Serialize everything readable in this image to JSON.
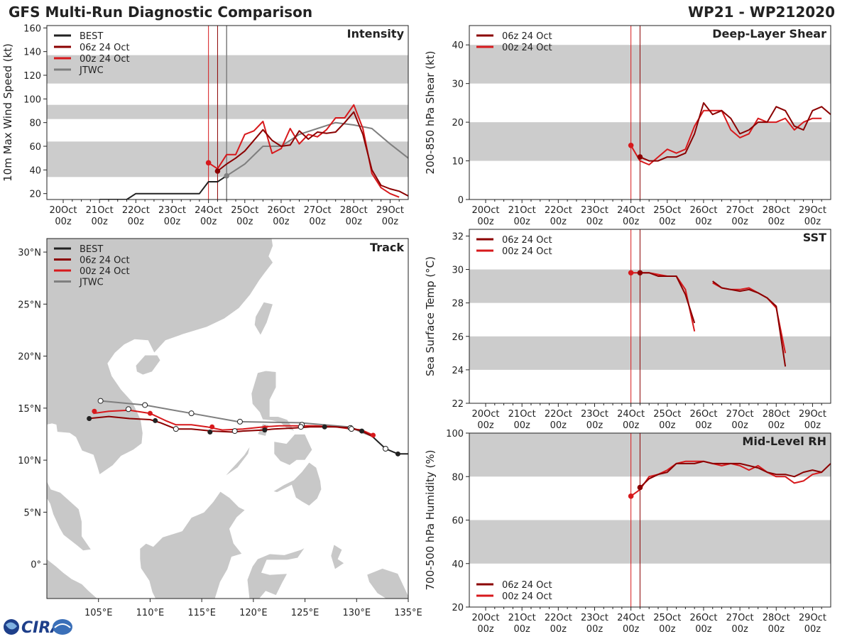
{
  "header": {
    "title": "GFS Multi-Run Diagnostic Comparison",
    "storm": "WP21 - WP212020"
  },
  "colors": {
    "best": "#222222",
    "run06": "#8b0000",
    "run00": "#d7191c",
    "jtwc": "#7f7f7f",
    "band": "#cccccc",
    "land": "#c8c8c8"
  },
  "legend": {
    "best": "BEST",
    "run06": "06z 24 Oct",
    "run00": "00z 24 Oct",
    "jtwc": "JTWC"
  },
  "time_axis": {
    "days": [
      "20Oct",
      "21Oct",
      "22Oct",
      "23Oct",
      "24Oct",
      "25Oct",
      "26Oct",
      "27Oct",
      "28Oct",
      "29Oct"
    ],
    "hour_label": "00z",
    "day_range": [
      19.55,
      29.5
    ]
  },
  "chart_data": [
    {
      "id": "intensity",
      "type": "line",
      "title": "Intensity",
      "ylabel": "10m Max Wind Speed (kt)",
      "ylim": [
        15,
        162
      ],
      "yticks": [
        20,
        40,
        60,
        80,
        100,
        120,
        140,
        160
      ],
      "bands": [
        [
          34,
          64
        ],
        [
          83,
          95
        ],
        [
          113,
          137
        ]
      ],
      "init_lines": [
        24.0,
        24.25
      ],
      "jtwc_line": 24.5,
      "series": [
        {
          "key": "best",
          "name": "BEST",
          "marker_at_start": false,
          "x": [
            21.0,
            21.25,
            21.5,
            21.75,
            22.0,
            22.25,
            22.5,
            22.75,
            23.0,
            23.25,
            23.5,
            23.75,
            24.0,
            24.25,
            24.5
          ],
          "y": [
            15,
            15,
            15,
            15,
            20,
            20,
            20,
            20,
            20,
            20,
            20,
            20,
            30,
            30,
            35
          ]
        },
        {
          "key": "run06",
          "name": "06z 24 Oct",
          "marker_at_start": true,
          "x": [
            24.25,
            24.5,
            24.75,
            25.0,
            25.25,
            25.5,
            25.75,
            26.0,
            26.25,
            26.5,
            26.75,
            27.0,
            27.25,
            27.5,
            27.75,
            28.0,
            28.25,
            28.5,
            28.75,
            29.0,
            29.25,
            29.5
          ],
          "y": [
            39,
            45,
            50,
            56,
            65,
            74,
            65,
            60,
            61,
            73,
            66,
            72,
            71,
            72,
            80,
            89,
            70,
            40,
            27,
            24,
            22,
            18
          ]
        },
        {
          "key": "run00",
          "name": "00z 24 Oct",
          "marker_at_start": true,
          "x": [
            24.0,
            24.25,
            24.5,
            24.75,
            25.0,
            25.25,
            25.5,
            25.75,
            26.0,
            26.25,
            26.5,
            26.75,
            27.0,
            27.25,
            27.5,
            27.75,
            28.0,
            28.25,
            28.5,
            28.75,
            29.0,
            29.25
          ],
          "y": [
            46,
            41,
            53,
            53,
            70,
            73,
            81,
            54,
            58,
            75,
            62,
            70,
            68,
            74,
            84,
            84,
            95,
            75,
            37,
            25,
            20,
            17
          ]
        },
        {
          "key": "jtwc",
          "name": "JTWC",
          "marker_at_start": true,
          "x": [
            24.5,
            25.0,
            25.5,
            26.0,
            26.5,
            27.0,
            27.5,
            28.0,
            28.5,
            29.0,
            29.5
          ],
          "y": [
            35,
            45,
            60,
            60,
            70,
            75,
            80,
            78,
            75,
            62,
            50
          ]
        }
      ]
    },
    {
      "id": "shear",
      "type": "line",
      "title": "Deep-Layer Shear",
      "ylabel": "200-850 hPa Shear (kt)",
      "ylim": [
        0,
        45
      ],
      "yticks": [
        0,
        10,
        20,
        30,
        40
      ],
      "bands": [
        [
          10,
          20
        ],
        [
          30,
          40
        ]
      ],
      "init_lines": [
        24.0,
        24.25
      ],
      "series": [
        {
          "key": "run06",
          "name": "06z 24 Oct",
          "marker_at_start": true,
          "x": [
            24.25,
            24.5,
            24.75,
            25.0,
            25.25,
            25.5,
            25.75,
            26.0,
            26.25,
            26.5,
            26.75,
            27.0,
            27.25,
            27.5,
            27.75,
            28.0,
            28.25,
            28.5,
            28.75,
            29.0,
            29.25,
            29.5
          ],
          "y": [
            11,
            10,
            10,
            11,
            11,
            12,
            17,
            25,
            22,
            23,
            21,
            17,
            18,
            20,
            20,
            24,
            23,
            19,
            18,
            23,
            24,
            22
          ]
        },
        {
          "key": "run00",
          "name": "00z 24 Oct",
          "marker_at_start": true,
          "x": [
            24.0,
            24.25,
            24.5,
            24.75,
            25.0,
            25.25,
            25.5,
            25.75,
            26.0,
            26.25,
            26.5,
            26.75,
            27.0,
            27.25,
            27.5,
            27.75,
            28.0,
            28.25,
            28.5,
            28.75,
            29.0,
            29.25
          ],
          "y": [
            14,
            10,
            9,
            11,
            13,
            12,
            13,
            19,
            23,
            23,
            23,
            18,
            16,
            17,
            21,
            20,
            20,
            21,
            18,
            20,
            21,
            21
          ]
        }
      ]
    },
    {
      "id": "sst",
      "type": "line",
      "title": "SST",
      "ylabel": "Sea Surface Temp (°C)",
      "ylim": [
        22,
        32.4
      ],
      "yticks": [
        22,
        24,
        26,
        28,
        30,
        32
      ],
      "bands": [
        [
          24,
          26
        ],
        [
          28,
          30
        ]
      ],
      "init_lines": [
        24.0,
        24.25
      ],
      "series": [
        {
          "key": "run06",
          "name": "06z 24 Oct",
          "marker_at_start": true,
          "segments": [
            {
              "x": [
                24.25,
                24.5,
                24.75,
                25.0,
                25.25,
                25.5,
                25.75
              ],
              "y": [
                29.8,
                29.8,
                29.6,
                29.6,
                29.6,
                28.5,
                26.8
              ]
            },
            {
              "x": [
                26.25,
                26.5,
                26.75,
                27.0,
                27.25,
                27.5,
                27.75,
                28.0,
                28.25
              ],
              "y": [
                29.3,
                28.9,
                28.8,
                28.7,
                28.8,
                28.6,
                28.3,
                27.8,
                24.2
              ]
            }
          ]
        },
        {
          "key": "run00",
          "name": "00z 24 Oct",
          "marker_at_start": true,
          "segments": [
            {
              "x": [
                24.0,
                24.25,
                24.5,
                24.75,
                25.0,
                25.25,
                25.5,
                25.75
              ],
              "y": [
                29.8,
                29.8,
                29.8,
                29.7,
                29.6,
                29.6,
                28.8,
                26.3
              ]
            },
            {
              "x": [
                26.25,
                26.5,
                26.75,
                27.0,
                27.25,
                27.5,
                27.75,
                28.0,
                28.25
              ],
              "y": [
                29.2,
                28.9,
                28.8,
                28.8,
                28.9,
                28.6,
                28.3,
                27.7,
                25.0
              ]
            }
          ]
        }
      ]
    },
    {
      "id": "rh",
      "type": "line",
      "title": "Mid-Level RH",
      "ylabel": "700-500 hPa Humidity (%)",
      "ylim": [
        20,
        100
      ],
      "yticks": [
        20,
        40,
        60,
        80,
        100
      ],
      "bands": [
        [
          40,
          60
        ],
        [
          80,
          100
        ]
      ],
      "init_lines": [
        24.0,
        24.25
      ],
      "legend_position": "bottom-left",
      "series": [
        {
          "key": "run06",
          "name": "06z 24 Oct",
          "marker_at_start": true,
          "x": [
            24.25,
            24.5,
            24.75,
            25.0,
            25.25,
            25.5,
            25.75,
            26.0,
            26.25,
            26.5,
            26.75,
            27.0,
            27.25,
            27.5,
            27.75,
            28.0,
            28.25,
            28.5,
            28.75,
            29.0,
            29.25,
            29.5
          ],
          "y": [
            75,
            79,
            81,
            82,
            86,
            86,
            86,
            87,
            86,
            86,
            86,
            86,
            85,
            84,
            82,
            81,
            81,
            80,
            82,
            83,
            82,
            86
          ]
        },
        {
          "key": "run00",
          "name": "00z 24 Oct",
          "marker_at_start": true,
          "x": [
            24.0,
            24.25,
            24.5,
            24.75,
            25.0,
            25.25,
            25.5,
            25.75,
            26.0,
            26.25,
            26.5,
            26.75,
            27.0,
            27.25,
            27.5,
            27.75,
            28.0,
            28.25,
            28.5,
            28.75,
            29.0,
            29.25
          ],
          "y": [
            71,
            74,
            80,
            81,
            83,
            86,
            87,
            87,
            87,
            86,
            85,
            86,
            85,
            83,
            85,
            82,
            80,
            80,
            77,
            78,
            81,
            82
          ]
        }
      ]
    },
    {
      "id": "track",
      "type": "scatter",
      "title": "Track",
      "xlim": [
        100.0,
        135.0
      ],
      "ylim": [
        -3.3,
        31.3
      ],
      "xticks": [
        105,
        110,
        115,
        120,
        125,
        130,
        135
      ],
      "xticklabels": [
        "105°E",
        "110°E",
        "115°E",
        "120°E",
        "125°E",
        "130°E",
        "135°E"
      ],
      "yticks": [
        0,
        5,
        10,
        15,
        20,
        25,
        30
      ],
      "yticklabels": [
        "0°",
        "5°N",
        "10°N",
        "15°N",
        "20°N",
        "25°N",
        "30°N"
      ],
      "series": [
        {
          "key": "best",
          "name": "BEST",
          "lon": [
            135.0,
            134.0,
            132.8,
            131.5
          ],
          "lat": [
            10.6,
            10.6,
            11.1,
            12.3
          ],
          "points": [
            {
              "lon": 134.0,
              "lat": 10.6,
              "filled": true
            },
            {
              "lon": 132.8,
              "lat": 11.1,
              "filled": false
            }
          ]
        },
        {
          "key": "run06",
          "name": "06z 24 Oct",
          "lon": [
            131.5,
            130.5,
            129.5,
            128.0,
            127.0,
            125.5,
            124.0,
            122.0,
            121.0,
            119.0,
            118.0,
            116.0,
            114.0,
            112.5,
            111.0,
            110.0,
            108.0,
            106.0,
            104.0
          ],
          "lat": [
            12.3,
            12.8,
            13.1,
            13.2,
            13.2,
            13.2,
            13.1,
            13.0,
            12.9,
            12.8,
            12.7,
            12.8,
            13.0,
            13.0,
            13.6,
            13.9,
            14.0,
            14.2,
            14.0
          ],
          "points": [
            {
              "lon": 130.5,
              "lat": 12.8
            },
            {
              "lon": 126.9,
              "lat": 13.2
            },
            {
              "lon": 121.1,
              "lat": 12.9
            },
            {
              "lon": 115.8,
              "lat": 12.7
            },
            {
              "lon": 110.5,
              "lat": 13.8
            },
            {
              "lon": 104.1,
              "lat": 14.0
            }
          ]
        },
        {
          "key": "run00",
          "name": "00z 24 Oct",
          "lon": [
            131.6,
            130.5,
            129.5,
            128.0,
            126.0,
            124.5,
            122.5,
            121.0,
            119.0,
            117.0,
            115.5,
            114.0,
            112.5,
            111.5,
            110.0,
            108.0,
            106.0,
            104.5
          ],
          "lat": [
            12.4,
            12.9,
            13.0,
            13.2,
            13.3,
            13.3,
            13.3,
            13.2,
            13.0,
            12.9,
            13.2,
            13.4,
            13.4,
            13.8,
            14.5,
            14.8,
            14.7,
            14.5
          ],
          "points": [
            {
              "lon": 131.6,
              "lat": 12.4
            },
            {
              "lon": 116.0,
              "lat": 13.2
            },
            {
              "lon": 121.1,
              "lat": 13.1
            },
            {
              "lon": 110.0,
              "lat": 14.5
            },
            {
              "lon": 104.6,
              "lat": 14.7
            }
          ]
        },
        {
          "key": "jtwc",
          "name": "JTWC",
          "lon": [
            131.5,
            129.2,
            124.5,
            118.5,
            114.0,
            109.5,
            105.2
          ],
          "lat": [
            12.3,
            13.2,
            13.6,
            13.7,
            14.5,
            15.3,
            15.7
          ],
          "points": [
            {
              "lon": 129.4,
              "lat": 13.1
            },
            {
              "lon": 124.7,
              "lat": 13.4
            },
            {
              "lon": 118.7,
              "lat": 13.7
            },
            {
              "lon": 114.0,
              "lat": 14.5
            },
            {
              "lon": 109.5,
              "lat": 15.3
            },
            {
              "lon": 105.2,
              "lat": 15.7
            }
          ]
        },
        {
          "key": "run00",
          "name": "00z 24 Oct (open)",
          "lon": [],
          "lat": [],
          "points": [
            {
              "lon": 129.5,
              "lat": 13.0,
              "filled": false
            },
            {
              "lon": 124.6,
              "lat": 13.2,
              "filled": false
            },
            {
              "lon": 118.2,
              "lat": 12.8,
              "filled": false
            },
            {
              "lon": 112.5,
              "lat": 13.0,
              "filled": false
            },
            {
              "lon": 107.9,
              "lat": 14.9,
              "filled": false
            }
          ]
        }
      ]
    }
  ],
  "logo": {
    "text": "CIRA"
  }
}
